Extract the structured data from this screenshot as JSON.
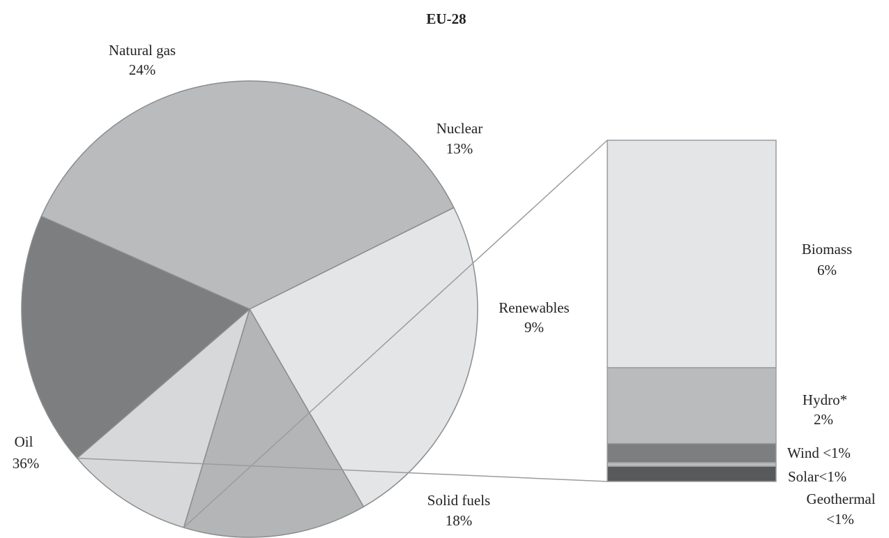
{
  "chart_data": [
    {
      "type": "pie",
      "title": "EU-28",
      "slices": [
        {
          "label": "Oil",
          "value": 36,
          "value_label": "36%",
          "color": "#b9bbbd"
        },
        {
          "label": "Natural gas",
          "value": 24,
          "value_label": "24%",
          "color": "#e3e5e7"
        },
        {
          "label": "Nuclear",
          "value": 13,
          "value_label": "13%",
          "color": "#b3b5b7"
        },
        {
          "label": "Renewables",
          "value": 9,
          "value_label": "9%",
          "color": "#d6d8da"
        },
        {
          "label": "Solid fuels",
          "value": 18,
          "value_label": "18%",
          "color": "#7c7e80"
        }
      ]
    },
    {
      "type": "bar",
      "stacked": true,
      "breakdown_of": "Renewables",
      "segments": [
        {
          "label": "Biomass",
          "value": 6,
          "value_label": "6%",
          "color": "#e3e5e7"
        },
        {
          "label": "Hydro*",
          "value": 2,
          "value_label": "2%",
          "color": "#b9bbbd"
        },
        {
          "label": "Wind",
          "value": 0.5,
          "value_label": "<1%",
          "color": "#7c7e80"
        },
        {
          "label": "Solar",
          "value": 0.1,
          "value_label": "<1%",
          "color": "#b9bbbd"
        },
        {
          "label": "Geothermal",
          "value": 0.4,
          "value_label": "<1%",
          "color": "#58595b"
        }
      ]
    }
  ]
}
